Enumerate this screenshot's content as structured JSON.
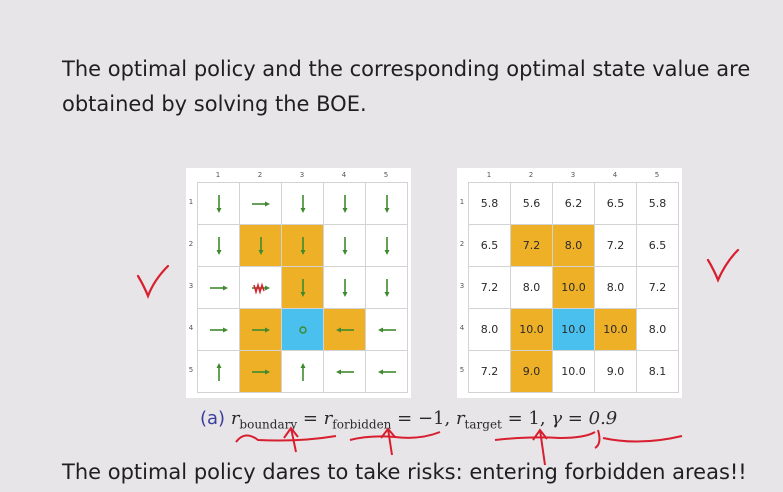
{
  "intro_text": "The optimal policy and the corresponding optimal state value are obtained by solving the BOE.",
  "conclusion_text": "The optimal policy dares to take risks: entering forbidden areas!!",
  "col_labels": [
    "1",
    "2",
    "3",
    "4",
    "5"
  ],
  "row_labels": [
    "1",
    "2",
    "3",
    "4",
    "5"
  ],
  "colors": {
    "forbidden": "#eeb027",
    "target": "#4ac0ee",
    "arrow": "#3f8a2e",
    "ink_red": "#d81f2f",
    "caption_label": "#3a3d9c"
  },
  "policy_grid": [
    [
      "down",
      "right",
      "down",
      "down",
      "down"
    ],
    [
      "down",
      "down",
      "down",
      "down",
      "down"
    ],
    [
      "right",
      "right",
      "down",
      "down",
      "down"
    ],
    [
      "right",
      "right",
      "stay",
      "left",
      "left"
    ],
    [
      "up",
      "right",
      "up",
      "left",
      "left"
    ]
  ],
  "cell_types": [
    [
      "n",
      "n",
      "n",
      "n",
      "n"
    ],
    [
      "n",
      "f",
      "f",
      "n",
      "n"
    ],
    [
      "n",
      "n",
      "f",
      "n",
      "n"
    ],
    [
      "n",
      "f",
      "t",
      "f",
      "n"
    ],
    [
      "n",
      "f",
      "n",
      "n",
      "n"
    ]
  ],
  "value_grid": [
    [
      "5.8",
      "5.6",
      "6.2",
      "6.5",
      "5.8"
    ],
    [
      "6.5",
      "7.2",
      "8.0",
      "7.2",
      "6.5"
    ],
    [
      "7.2",
      "8.0",
      "10.0",
      "8.0",
      "7.2"
    ],
    [
      "8.0",
      "10.0",
      "10.0",
      "10.0",
      "8.0"
    ],
    [
      "7.2",
      "9.0",
      "10.0",
      "9.0",
      "8.1"
    ]
  ],
  "caption": {
    "label": "(a)",
    "r_symbol": "r",
    "boundary_sub": "boundary",
    "forbidden_sub": "forbidden",
    "eq_value": "= −1,",
    "target_sub": "target",
    "target_value": "= 1,",
    "gamma": "γ = 0.9"
  }
}
